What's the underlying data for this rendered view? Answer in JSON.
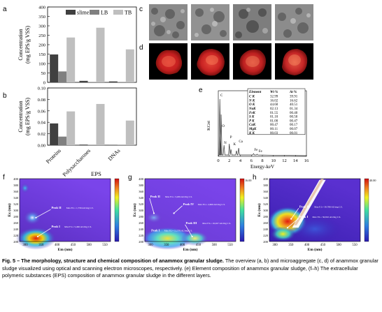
{
  "panels": {
    "a": "a",
    "b": "b",
    "c": "c",
    "d": "d",
    "e": "e",
    "f": "f",
    "g": "g",
    "h": "h"
  },
  "chart_data": [
    {
      "type": "bar",
      "panel": "a",
      "categories": [
        "Proteins",
        "Polysaccharoses",
        "DNAs"
      ],
      "series": [
        {
          "name": "slime",
          "values": [
            148,
            8,
            5
          ],
          "color": "#404040"
        },
        {
          "name": "LB",
          "values": [
            58,
            2,
            2
          ],
          "color": "#808080"
        },
        {
          "name": "TB",
          "values": [
            238,
            290,
            175
          ],
          "color": "#bfbfbf"
        }
      ],
      "ylabel": "Concentration (mg EPS/g VSS)",
      "ylim": [
        0,
        400
      ],
      "yticks": [
        "0",
        "50",
        "100",
        "150",
        "200",
        "250",
        "300",
        "350",
        "400"
      ]
    },
    {
      "type": "bar",
      "panel": "b",
      "categories": [
        "Proteins",
        "Polysaccharoses",
        "DNAs"
      ],
      "series": [
        {
          "name": "slime",
          "values": [
            0.038,
            0.001,
            0.0005
          ]
        },
        {
          "name": "LB",
          "values": [
            0.015,
            0.0005,
            0.0005
          ]
        },
        {
          "name": "TB",
          "values": [
            0.059,
            0.072,
            0.043
          ]
        }
      ],
      "ylabel": "Concentration (mg EPS/g VSS)",
      "xlabel": "EPS",
      "ylim": [
        0,
        0.1
      ],
      "yticks": [
        "0.00",
        "0.02",
        "0.04",
        "0.06",
        "0.08",
        "0.10"
      ]
    },
    {
      "type": "bar",
      "panel": "e",
      "xlabel": "Energy-keV",
      "ylabel": "KCnt",
      "xticks": [
        "0",
        "2",
        "4",
        "6",
        "8",
        "10",
        "12",
        "14",
        "16"
      ],
      "peak_labels": [
        "C",
        "O",
        "N",
        "P",
        "K",
        "Ca",
        "Fe",
        "Fe"
      ],
      "table": {
        "headers": [
          "Element",
          "Wt %",
          "At %"
        ],
        "rows": [
          [
            "C K",
            "32.99",
            "39.91"
          ],
          [
            "N K",
            "16.02",
            "16.62"
          ],
          [
            "O K",
            "44.60",
            "40.51"
          ],
          [
            "NaK",
            "02.13",
            "01.34"
          ],
          [
            "FeK",
            "01.55",
            "00.40"
          ],
          [
            "S K",
            "01.10",
            "00.50"
          ],
          [
            "P K",
            "01.00",
            "00.47"
          ],
          [
            "CaK",
            "00.47",
            "00.17"
          ],
          [
            "MgK",
            "00.11",
            "00.07"
          ],
          [
            "K K",
            "00.03",
            "00.01"
          ]
        ]
      }
    },
    {
      "type": "heatmap",
      "panel": "f",
      "xlabel": "Em (nm)",
      "ylabel": "Ex (nm)",
      "xticks": [
        "300",
        "350",
        "400",
        "450",
        "500",
        "550"
      ],
      "yticks": [
        "200",
        "220",
        "240",
        "260",
        "280",
        "300",
        "320",
        "340",
        "360",
        "380",
        "400"
      ],
      "annotations": [
        {
          "peak": "Peak II",
          "text": "Max F.I.= 1,758 AU/mg C/L"
        },
        {
          "peak": "Peak I",
          "text": "Max F.I.= 5,496 AU/mg C/L"
        }
      ]
    },
    {
      "type": "heatmap",
      "panel": "g",
      "xlabel": "Em (nm)",
      "ylabel": "Ex (nm)",
      "xticks": [
        "300",
        "350",
        "400",
        "450",
        "500",
        "550"
      ],
      "yticks": [
        "200",
        "220",
        "240",
        "260",
        "280",
        "300",
        "320",
        "340",
        "360",
        "380",
        "400"
      ],
      "colorbar_max": "16.00",
      "annotations": [
        {
          "peak": "Peak II",
          "text": "Max F.I.= 3,269 AU/mg C/L"
        },
        {
          "peak": "Peak IV",
          "text": "Max F.I.= 2,669 AU/mg C/L"
        },
        {
          "peak": "Peak I",
          "text": "Max F.I.= 11,576 AU/mg C/L"
        },
        {
          "peak": "Peak III",
          "text": "Max F.I.= 16,027 AU/mg C/L"
        }
      ]
    },
    {
      "type": "heatmap",
      "panel": "h",
      "xlabel": "Em (nm)",
      "ylabel": "Ex (nm)",
      "xticks": [
        "300",
        "350",
        "400",
        "450",
        "500",
        "550"
      ],
      "yticks": [
        "200",
        "220",
        "240",
        "260",
        "280",
        "300",
        "320",
        "340",
        "360",
        "380",
        "400"
      ],
      "colorbar_max": "40.00",
      "annotations": [
        {
          "peak": "Peak II",
          "text": "Max F.I.= 39,788 AU/mg C/L"
        },
        {
          "peak": "Peak I",
          "text": "Max F.I.= 36,810 AU/mg C/L"
        }
      ]
    }
  ],
  "caption": {
    "label": "Fig. 5 – The morphology, structure and chemical composition of anammox granular sludge.",
    "text": " The overview (a, b) and microaggregate (c, d) of anammox granular sludge visualized using optical and scanning electron microscopes, respectively. (e) Element composition of anammox granular sludge, (f–h) The extracellular polymeric substances (EPS) composition of anammox granular sludge in the different layers."
  },
  "colors": {
    "slime": "#404040",
    "LB": "#808080",
    "TB": "#bfbfbf"
  }
}
